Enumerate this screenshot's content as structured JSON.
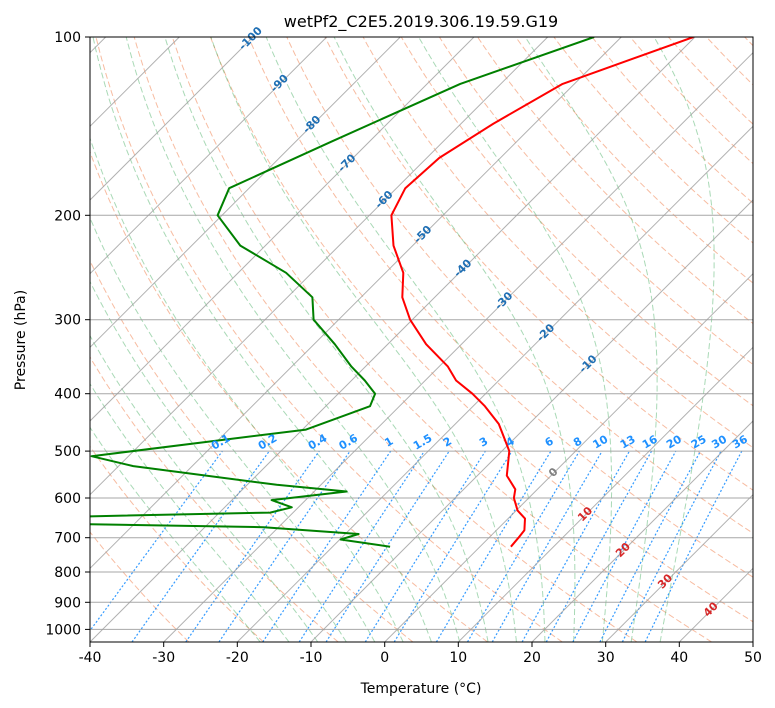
{
  "title": "wetPf2_C2E5.2019.306.19.59.G19",
  "chart_data": {
    "type": "line",
    "subtype": "skew-T log-P diagram",
    "title": "wetPf2_C2E5.2019.306.19.59.G19",
    "xlabel": "Temperature (°C)",
    "ylabel": "Pressure (hPa)",
    "xlim": [
      -40,
      50
    ],
    "ylim": [
      1050,
      100
    ],
    "y_scale": "log",
    "grid": true,
    "x_ticks": [
      -40,
      -30,
      -20,
      -10,
      0,
      10,
      20,
      30,
      40,
      50
    ],
    "y_ticks": [
      100,
      200,
      300,
      400,
      500,
      600,
      700,
      800,
      900,
      1000
    ],
    "series": [
      {
        "color": "#ff0000",
        "points": [
          [
            -40.2,
            100
          ],
          [
            -51.6,
            120
          ],
          [
            -55.6,
            140
          ],
          [
            -58.3,
            160
          ],
          [
            -58.8,
            180
          ],
          [
            -57.0,
            200
          ],
          [
            -52.6,
            225
          ],
          [
            -47.6,
            250
          ],
          [
            -44.4,
            275
          ],
          [
            -40.3,
            300
          ],
          [
            -34.8,
            330
          ],
          [
            -28.8,
            360
          ],
          [
            -25.8,
            380
          ],
          [
            -21.8,
            400
          ],
          [
            -18.4,
            420
          ],
          [
            -14.1,
            450
          ],
          [
            -9.0,
            500
          ],
          [
            -6.0,
            550
          ],
          [
            -3.0,
            580
          ],
          [
            -2.0,
            600
          ],
          [
            0.2,
            630
          ],
          [
            2.3,
            650
          ],
          [
            3.8,
            680
          ],
          [
            4.0,
            700
          ],
          [
            4.2,
            725
          ]
        ]
      },
      {
        "color": "#008000",
        "points": [
          [
            -53.7,
            100
          ],
          [
            -65.5,
            120
          ],
          [
            -75.1,
            150
          ],
          [
            -82.7,
            180
          ],
          [
            -80.6,
            200
          ],
          [
            -73.4,
            225
          ],
          [
            -63.5,
            250
          ],
          [
            -56.6,
            275
          ],
          [
            -53.4,
            300
          ],
          [
            -47.2,
            330
          ],
          [
            -41.9,
            360
          ],
          [
            -38.2,
            380
          ],
          [
            -35.0,
            400
          ],
          [
            -34.0,
            420
          ],
          [
            -39.5,
            460
          ],
          [
            -65.0,
            510
          ],
          [
            -58.0,
            530
          ],
          [
            -36.0,
            570
          ],
          [
            -25.6,
            585
          ],
          [
            -34.6,
            605
          ],
          [
            -30.9,
            622
          ],
          [
            -33.1,
            635
          ],
          [
            -84.6,
            655
          ],
          [
            -32.0,
            672
          ],
          [
            -18.2,
            690
          ],
          [
            -19.9,
            705
          ],
          [
            -12.2,
            725
          ]
        ]
      }
    ],
    "isotherm_labels": [
      "-100",
      "-90",
      "-80",
      "-70",
      "-60",
      "-50",
      "-40",
      "-30",
      "-20",
      "-10"
    ],
    "mixing_ratio_labels": [
      "0.1",
      "0.2",
      "0.4",
      "0.6",
      "1",
      "1.5",
      "2",
      "3",
      "4",
      "6",
      "8",
      "10",
      "13",
      "16",
      "20",
      "25",
      "30",
      "36"
    ],
    "isotherm_text_color": "#1f6fb4",
    "mixing_ratio_color": "#1e90ff",
    "moist_adiabat_labels": [
      "0",
      "10",
      "20",
      "30",
      "40"
    ],
    "moist_adiabat_colors": {
      "0": "#808080",
      "other": "#d62728"
    }
  }
}
